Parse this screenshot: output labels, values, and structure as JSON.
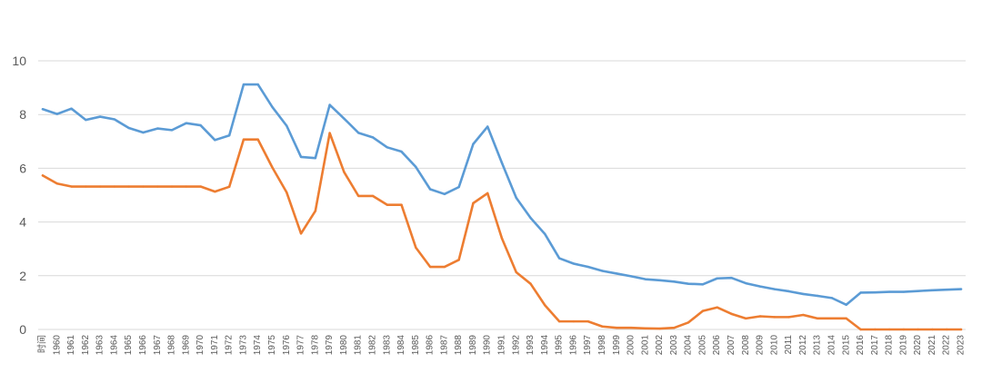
{
  "chart_data": {
    "type": "line",
    "title": "",
    "xlabel": "",
    "ylabel": "",
    "ylim": [
      0,
      10
    ],
    "yticks": [
      "0",
      "2",
      "4",
      "6",
      "8",
      "10"
    ],
    "grid": true,
    "legend": "none",
    "categories": [
      "时间",
      "1960",
      "1961",
      "1962",
      "1963",
      "1964",
      "1965",
      "1966",
      "1967",
      "1968",
      "1969",
      "1970",
      "1971",
      "1972",
      "1973",
      "1974",
      "1975",
      "1976",
      "1977",
      "1978",
      "1979",
      "1980",
      "1981",
      "1982",
      "1983",
      "1984",
      "1985",
      "1986",
      "1987",
      "1988",
      "1989",
      "1990",
      "1991",
      "1992",
      "1993",
      "1994",
      "1995",
      "1996",
      "1997",
      "1998",
      "1999",
      "2000",
      "2001",
      "2002",
      "2003",
      "2004",
      "2005",
      "2006",
      "2007",
      "2008",
      "2009",
      "2010",
      "2011",
      "2012",
      "2013",
      "2014",
      "2015",
      "2016",
      "2017",
      "2018",
      "2019",
      "2020",
      "2021",
      "2022",
      "2023"
    ],
    "series": [
      {
        "color": "#5b9bd5",
        "values": [
          8.2,
          8.02,
          8.22,
          7.8,
          7.92,
          7.82,
          7.5,
          7.33,
          7.48,
          7.42,
          7.68,
          7.6,
          7.05,
          7.22,
          9.12,
          9.12,
          8.28,
          7.58,
          6.42,
          6.38,
          8.36,
          7.85,
          7.32,
          7.15,
          6.78,
          6.62,
          6.05,
          5.22,
          5.04,
          5.3,
          6.9,
          7.55,
          6.2,
          4.9,
          4.15,
          3.55,
          2.65,
          2.45,
          2.33,
          2.18,
          2.08,
          1.98,
          1.87,
          1.83,
          1.78,
          1.7,
          1.68,
          1.9,
          1.92,
          1.72,
          1.6,
          1.5,
          1.42,
          1.32,
          1.25,
          1.17,
          0.92,
          1.37,
          1.38,
          1.4,
          1.4,
          1.43,
          1.46,
          1.48,
          1.5
        ]
      },
      {
        "color": "#ed7d31",
        "values": [
          5.73,
          5.43,
          5.32,
          5.32,
          5.32,
          5.32,
          5.32,
          5.32,
          5.32,
          5.32,
          5.32,
          5.32,
          5.13,
          5.31,
          7.07,
          7.07,
          6.03,
          5.1,
          3.57,
          4.41,
          7.31,
          5.86,
          4.97,
          4.97,
          4.64,
          4.64,
          3.05,
          2.33,
          2.33,
          2.59,
          4.7,
          5.07,
          3.39,
          2.13,
          1.7,
          0.9,
          0.3,
          0.3,
          0.3,
          0.11,
          0.06,
          0.06,
          0.04,
          0.03,
          0.06,
          0.26,
          0.69,
          0.82,
          0.58,
          0.41,
          0.49,
          0.46,
          0.46,
          0.54,
          0.41,
          0.41,
          0.41,
          0.0,
          0.0,
          0.0,
          0.0,
          0.0,
          0.0,
          0.0,
          0.0
        ]
      }
    ]
  }
}
